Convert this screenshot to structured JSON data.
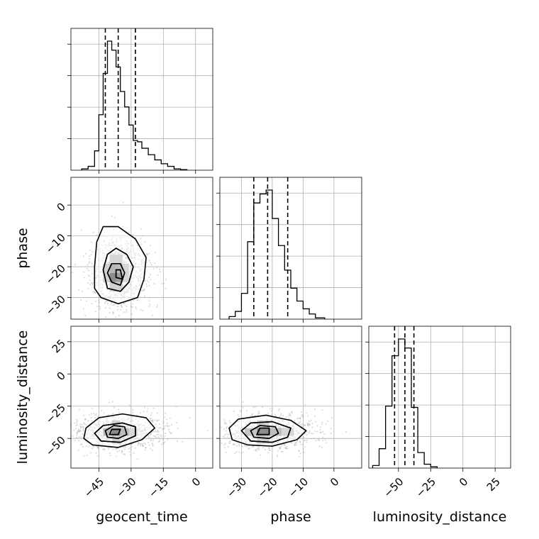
{
  "chart_data": {
    "type": "corner",
    "title": "",
    "grid": true,
    "parameters": [
      {
        "name": "geocent_time",
        "ticks": [
          -45,
          -30,
          -15,
          0
        ],
        "tick_labels": [
          "−45",
          "−30",
          "−15",
          "0"
        ],
        "range": [
          -58,
          8
        ],
        "quantiles": [
          -42,
          -36,
          -28
        ],
        "hist_edges": [
          -53,
          -50,
          -47,
          -45,
          -43,
          -41,
          -39,
          -37,
          -35,
          -33,
          -31,
          -29,
          -27,
          -25,
          -22,
          -19,
          -16,
          -13,
          -10,
          -7,
          -4
        ],
        "hist_counts": [
          0.01,
          0.03,
          0.15,
          0.43,
          0.75,
          1.0,
          0.93,
          0.8,
          0.61,
          0.49,
          0.35,
          0.23,
          0.22,
          0.17,
          0.12,
          0.08,
          0.05,
          0.03,
          0.01,
          0.005
        ]
      },
      {
        "name": "phase",
        "ticks": [
          -30,
          -20,
          -10,
          0
        ],
        "tick_labels": [
          "−30",
          "−20",
          "−10",
          "0"
        ],
        "range": [
          -37,
          9
        ],
        "quantiles": [
          -26,
          -21.5,
          -15
        ],
        "hist_edges": [
          -34,
          -32,
          -30,
          -28,
          -26,
          -24,
          -22,
          -20,
          -18,
          -16,
          -14,
          -12,
          -10,
          -8,
          -6,
          -3
        ],
        "hist_counts": [
          0.02,
          0.06,
          0.2,
          0.6,
          0.9,
          0.97,
          1.0,
          0.78,
          0.57,
          0.38,
          0.24,
          0.14,
          0.08,
          0.04,
          0.01
        ]
      },
      {
        "name": "luminosity_distance",
        "ticks": [
          -50,
          -25,
          0,
          25
        ],
        "tick_labels": [
          "−50",
          "−25",
          "0",
          "25"
        ],
        "range": [
          -73,
          37
        ],
        "quantiles": [
          -53,
          -45,
          -38
        ],
        "hist_edges": [
          -70,
          -65,
          -60,
          -55,
          -50,
          -45,
          -40,
          -35,
          -30,
          -25,
          -20
        ],
        "hist_counts": [
          0.02,
          0.15,
          0.48,
          0.87,
          1.0,
          0.93,
          0.47,
          0.12,
          0.03,
          0.01
        ]
      }
    ],
    "y_ticks": {
      "phase": {
        "ticks": [
          0,
          -10,
          -20,
          -30
        ],
        "tick_labels": [
          "0",
          "−10",
          "−20",
          "−30"
        ]
      },
      "luminosity_distance": {
        "ticks": [
          25,
          0,
          -25,
          -50
        ],
        "tick_labels": [
          "25",
          "0",
          "−25",
          "−50"
        ]
      }
    },
    "pairs": [
      {
        "x": "geocent_time",
        "y": "phase",
        "mean": [
          -36,
          -22
        ],
        "sd": [
          6.5,
          6
        ],
        "contours": [
          [
            [
              -44,
              -30
            ],
            [
              -36,
              -32
            ],
            [
              -27,
              -30
            ],
            [
              -24,
              -24
            ],
            [
              -23,
              -17
            ],
            [
              -28,
              -11
            ],
            [
              -36,
              -7
            ],
            [
              -43,
              -7
            ],
            [
              -46,
              -12
            ],
            [
              -47,
              -20
            ],
            [
              -47,
              -27
            ]
          ],
          [
            [
              -41,
              -27
            ],
            [
              -35,
              -28
            ],
            [
              -31,
              -25
            ],
            [
              -29,
              -20
            ],
            [
              -32,
              -16
            ],
            [
              -37,
              -14
            ],
            [
              -41,
              -16
            ],
            [
              -43,
              -21
            ]
          ],
          [
            [
              -39,
              -25
            ],
            [
              -35,
              -26
            ],
            [
              -33,
              -22
            ],
            [
              -35,
              -19
            ],
            [
              -39,
              -19
            ],
            [
              -41,
              -22
            ]
          ],
          [
            [
              -37,
              -23.5
            ],
            [
              -34,
              -24
            ],
            [
              -35,
              -21
            ],
            [
              -37,
              -21
            ]
          ]
        ],
        "dense_cells": [
          {
            "x": [
              -40,
              -37
            ],
            "y": [
              -25,
              -22
            ],
            "shade": 1.0
          },
          {
            "x": [
              -37,
              -34
            ],
            "y": [
              -25,
              -22
            ],
            "shade": 0.85
          },
          {
            "x": [
              -40,
              -37
            ],
            "y": [
              -22,
              -19
            ],
            "shade": 0.6
          },
          {
            "x": [
              -37,
              -34
            ],
            "y": [
              -22,
              -19
            ],
            "shade": 0.55
          },
          {
            "x": [
              -43,
              -40
            ],
            "y": [
              -25,
              -19
            ],
            "shade": 0.35
          },
          {
            "x": [
              -34,
              -31
            ],
            "y": [
              -25,
              -19
            ],
            "shade": 0.3
          },
          {
            "x": [
              -40,
              -34
            ],
            "y": [
              -28,
              -25
            ],
            "shade": 0.35
          },
          {
            "x": [
              -40,
              -34
            ],
            "y": [
              -19,
              -16
            ],
            "shade": 0.3
          }
        ]
      },
      {
        "x": "geocent_time",
        "y": "luminosity_distance",
        "mean": [
          -35,
          -45
        ],
        "sd": [
          9,
          7
        ],
        "contours": [
          [
            [
              -48,
              -55
            ],
            [
              -36,
              -57
            ],
            [
              -25,
              -51
            ],
            [
              -19,
              -42
            ],
            [
              -23,
              -34
            ],
            [
              -34,
              -31
            ],
            [
              -45,
              -34
            ],
            [
              -51,
              -42
            ],
            [
              -52,
              -50
            ]
          ],
          [
            [
              -44,
              -52
            ],
            [
              -35,
              -53
            ],
            [
              -28,
              -48
            ],
            [
              -28,
              -41
            ],
            [
              -34,
              -38
            ],
            [
              -43,
              -40
            ],
            [
              -47,
              -46
            ]
          ],
          [
            [
              -41,
              -49
            ],
            [
              -36,
              -50
            ],
            [
              -32,
              -47
            ],
            [
              -33,
              -41
            ],
            [
              -38,
              -40
            ],
            [
              -42,
              -44
            ]
          ],
          [
            [
              -40,
              -47
            ],
            [
              -36,
              -47
            ],
            [
              -35,
              -43
            ],
            [
              -39,
              -43
            ]
          ]
        ],
        "dense_cells": [
          {
            "x": [
              -39,
              -35
            ],
            "y": [
              -48,
              -42
            ],
            "shade": 1.0
          },
          {
            "x": [
              -43,
              -39
            ],
            "y": [
              -48,
              -42
            ],
            "shade": 0.55
          },
          {
            "x": [
              -35,
              -31
            ],
            "y": [
              -48,
              -42
            ],
            "shade": 0.55
          },
          {
            "x": [
              -39,
              -35
            ],
            "y": [
              -54,
              -48
            ],
            "shade": 0.35
          },
          {
            "x": [
              -39,
              -35
            ],
            "y": [
              -42,
              -36
            ],
            "shade": 0.35
          },
          {
            "x": [
              -31,
              -27
            ],
            "y": [
              -48,
              -42
            ],
            "shade": 0.3
          }
        ]
      },
      {
        "x": "phase",
        "y": "luminosity_distance",
        "mean": [
          -21,
          -45
        ],
        "sd": [
          7,
          7
        ],
        "contours": [
          [
            [
              -28,
              -55
            ],
            [
              -20,
              -56
            ],
            [
              -12,
              -51
            ],
            [
              -9,
              -44
            ],
            [
              -14,
              -36
            ],
            [
              -22,
              -32
            ],
            [
              -31,
              -35
            ],
            [
              -34,
              -42
            ],
            [
              -33,
              -51
            ]
          ],
          [
            [
              -27,
              -52
            ],
            [
              -20,
              -53
            ],
            [
              -15,
              -49
            ],
            [
              -14,
              -42
            ],
            [
              -20,
              -37
            ],
            [
              -27,
              -38
            ],
            [
              -30,
              -44
            ]
          ],
          [
            [
              -26,
              -49
            ],
            [
              -21,
              -50
            ],
            [
              -18,
              -46
            ],
            [
              -19,
              -41
            ],
            [
              -24,
              -40
            ],
            [
              -27,
              -44
            ]
          ],
          [
            [
              -25,
              -47
            ],
            [
              -21,
              -47
            ],
            [
              -21,
              -42
            ],
            [
              -24,
              -42
            ]
          ]
        ],
        "dense_cells": [
          {
            "x": [
              -25,
              -21
            ],
            "y": [
              -48,
              -42
            ],
            "shade": 1.0
          },
          {
            "x": [
              -21,
              -17
            ],
            "y": [
              -48,
              -42
            ],
            "shade": 0.55
          },
          {
            "x": [
              -29,
              -25
            ],
            "y": [
              -48,
              -42
            ],
            "shade": 0.45
          },
          {
            "x": [
              -17,
              -13
            ],
            "y": [
              -48,
              -42
            ],
            "shade": 0.3
          },
          {
            "x": [
              -25,
              -21
            ],
            "y": [
              -54,
              -48
            ],
            "shade": 0.35
          },
          {
            "x": [
              -25,
              -21
            ],
            "y": [
              -42,
              -36
            ],
            "shade": 0.35
          }
        ]
      }
    ]
  }
}
